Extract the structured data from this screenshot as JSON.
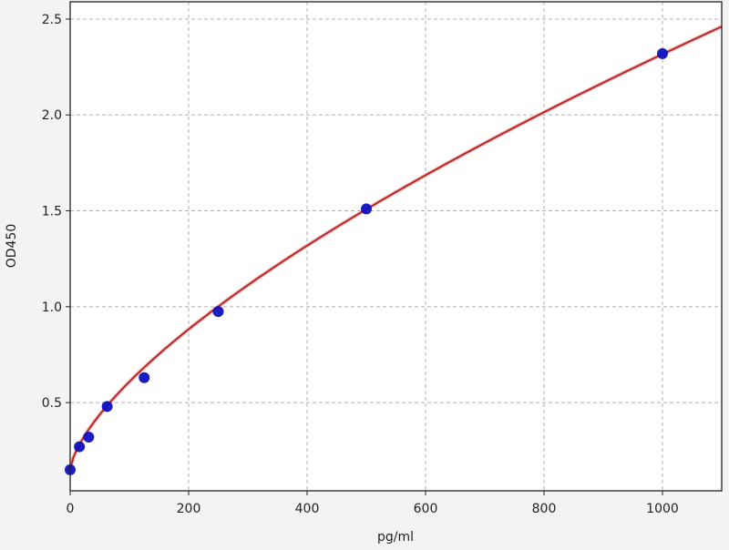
{
  "chart_data": {
    "type": "scatter",
    "title": "",
    "xlabel": "pg/ml",
    "ylabel": "OD450",
    "xlim": [
      0,
      1100
    ],
    "ylim": [
      0.04,
      2.59
    ],
    "xticks": [
      0,
      200,
      400,
      600,
      800,
      1000
    ],
    "yticks": [
      0.5,
      1.0,
      1.5,
      2.0,
      2.5
    ],
    "xtick_labels": [
      "0",
      "200",
      "400",
      "600",
      "800",
      "1000"
    ],
    "ytick_labels": [
      "0.5",
      "1.0",
      "1.5",
      "2.0",
      "2.5"
    ],
    "grid": true,
    "series": [
      {
        "type": "scatter",
        "color": "#1010c0",
        "x": [
          0,
          15.6,
          31.25,
          62.5,
          125,
          250,
          500,
          1000
        ],
        "y": [
          0.15,
          0.27,
          0.32,
          0.48,
          0.63,
          0.975,
          1.51,
          2.32
        ]
      },
      {
        "type": "line",
        "color": "#b22222"
      }
    ]
  }
}
